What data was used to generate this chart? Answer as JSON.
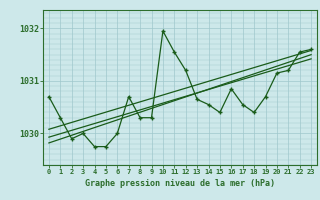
{
  "title": "Graphe pression niveau de la mer (hPa)",
  "bg_color": "#cde8ea",
  "plot_bg": "#cde8ea",
  "line_color": "#1a5c1a",
  "grid_color": "#a0c8cc",
  "border_color": "#2d6e2d",
  "ylim": [
    1029.4,
    1032.35
  ],
  "xlim": [
    -0.5,
    23.5
  ],
  "yticks": [
    1030,
    1031,
    1032
  ],
  "xticks": [
    0,
    1,
    2,
    3,
    4,
    5,
    6,
    7,
    8,
    9,
    10,
    11,
    12,
    13,
    14,
    15,
    16,
    17,
    18,
    19,
    20,
    21,
    22,
    23
  ],
  "hours": [
    0,
    1,
    2,
    3,
    4,
    5,
    6,
    7,
    8,
    9,
    10,
    11,
    12,
    13,
    14,
    15,
    16,
    17,
    18,
    19,
    20,
    21,
    22,
    23
  ],
  "pressure": [
    1030.7,
    1030.3,
    1029.9,
    1030.0,
    1029.75,
    1029.75,
    1030.0,
    1030.7,
    1030.3,
    1030.3,
    1031.95,
    1031.55,
    1031.2,
    1030.65,
    1030.55,
    1030.4,
    1030.85,
    1030.55,
    1030.4,
    1030.7,
    1031.15,
    1031.2,
    1031.55,
    1031.6
  ],
  "trend_lines": [
    [
      0,
      1029.82,
      23,
      1031.5
    ],
    [
      0,
      1029.93,
      23,
      1031.42
    ],
    [
      0,
      1030.08,
      23,
      1031.58
    ]
  ]
}
